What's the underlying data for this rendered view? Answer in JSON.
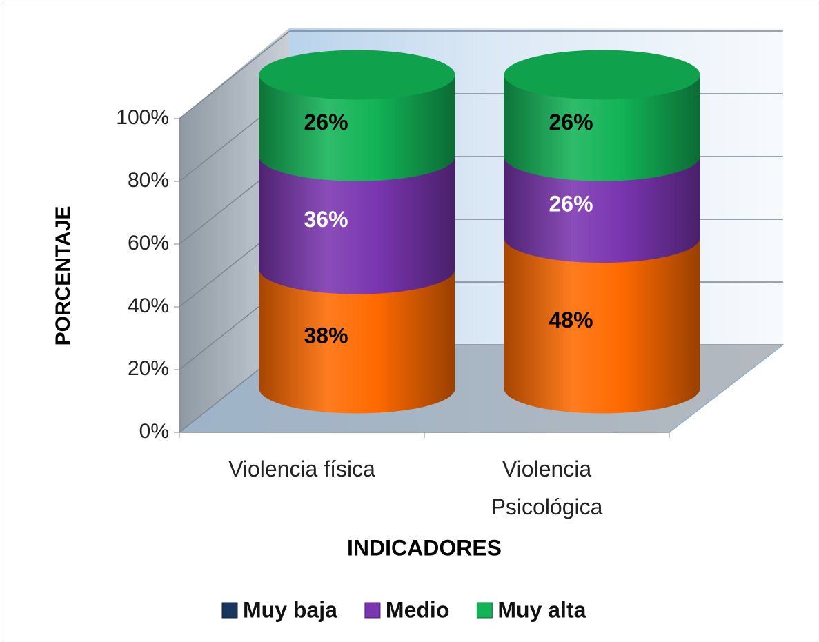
{
  "chart_data": {
    "type": "bar3d_cylinder_stacked",
    "y_label": "PORCENTAJE",
    "x_label": "INDICADORES",
    "categories": [
      "Violencia física",
      "Violencia\nPsicológica"
    ],
    "series": [
      {
        "name": "Muy baja",
        "color": "#ff6a00",
        "legend_color": "#17375e",
        "label_color": "#000000",
        "values": [
          38,
          48
        ],
        "value_labels": [
          "38%",
          "48%"
        ]
      },
      {
        "name": "Medio",
        "color": "#7a35b0",
        "legend_color": "#7a35b0",
        "label_color": "#ffffff",
        "values": [
          36,
          26
        ],
        "value_labels": [
          "36%",
          "26%"
        ]
      },
      {
        "name": "Muy alta",
        "color": "#12b356",
        "legend_color": "#12b356",
        "label_color": "#000000",
        "values": [
          26,
          26
        ],
        "value_labels": [
          "26%",
          "26%"
        ]
      }
    ],
    "ylim": [
      0,
      100
    ],
    "yticks": [
      {
        "value": 0,
        "label": "0%"
      },
      {
        "value": 20,
        "label": "20%"
      },
      {
        "value": 40,
        "label": "40%"
      },
      {
        "value": 60,
        "label": "60%"
      },
      {
        "value": 80,
        "label": "80%"
      },
      {
        "value": 100,
        "label": "100%"
      }
    ],
    "grid": true,
    "legend": "bottom"
  }
}
